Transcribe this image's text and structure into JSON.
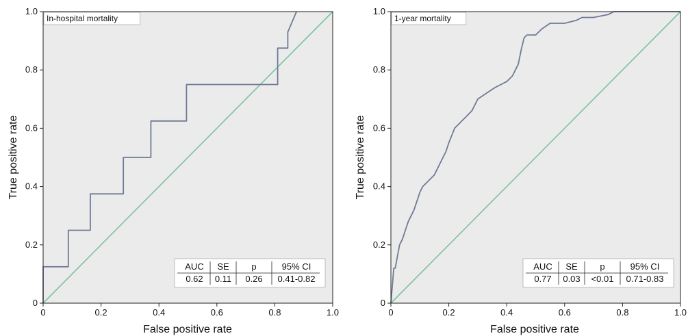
{
  "chart_data": [
    {
      "type": "line",
      "title": "In-hospital mortality",
      "xlabel": "False positive rate",
      "ylabel": "True positive rate",
      "xlim": [
        0,
        1
      ],
      "ylim": [
        0,
        1
      ],
      "xticks": [
        "0",
        "0.2",
        "0.4",
        "0.6",
        "0.8",
        "1.0"
      ],
      "yticks": [
        "0",
        "0.2",
        "0.4",
        "0.6",
        "0.8",
        "1.0"
      ],
      "colors": {
        "roc": "#6f7a95",
        "reference": "#79c49b",
        "background": "#ebebeb"
      },
      "series": [
        {
          "x": [
            0,
            0,
            0.087,
            0.087,
            0.163,
            0.163,
            0.277,
            0.277,
            0.372,
            0.372,
            0.495,
            0.495,
            0.81,
            0.81,
            0.825,
            0.825,
            0.845,
            0.845,
            0.875
          ],
          "y": [
            0,
            0.125,
            0.125,
            0.25,
            0.25,
            0.375,
            0.375,
            0.5,
            0.5,
            0.625,
            0.625,
            0.75,
            0.75,
            0.875,
            0.875,
            0.875,
            0.875,
            0.93,
            1.0
          ]
        },
        {
          "x": [
            0,
            1
          ],
          "y": [
            0,
            1
          ]
        }
      ],
      "stats_table": {
        "headers": [
          "AUC",
          "SE",
          "p",
          "95% CI"
        ],
        "values": [
          "0.62",
          "0.11",
          "0.26",
          "0.41-0.82"
        ]
      }
    },
    {
      "type": "line",
      "title": "1-year mortality",
      "xlabel": "False positive rate",
      "ylabel": "True positive rate",
      "xlim": [
        0,
        1
      ],
      "ylim": [
        0,
        1
      ],
      "xticks": [
        "0",
        "0.2",
        "0.4",
        "0.6",
        "0.8",
        "1.0"
      ],
      "yticks": [
        "0",
        "0.2",
        "0.4",
        "0.6",
        "0.8",
        "1.0"
      ],
      "colors": {
        "roc": "#6f7a95",
        "reference": "#79c49b",
        "background": "#ebebeb"
      },
      "series": [
        {
          "x": [
            0,
            0.005,
            0.01,
            0.015,
            0.03,
            0.04,
            0.05,
            0.06,
            0.08,
            0.1,
            0.11,
            0.13,
            0.15,
            0.17,
            0.19,
            0.2,
            0.22,
            0.24,
            0.26,
            0.28,
            0.3,
            0.33,
            0.36,
            0.38,
            0.4,
            0.42,
            0.44,
            0.45,
            0.46,
            0.47,
            0.5,
            0.52,
            0.55,
            0.6,
            0.64,
            0.66,
            0.7,
            0.75,
            0.77,
            1.0
          ],
          "y": [
            0,
            0.06,
            0.12,
            0.12,
            0.2,
            0.22,
            0.25,
            0.28,
            0.32,
            0.38,
            0.4,
            0.42,
            0.44,
            0.48,
            0.52,
            0.55,
            0.6,
            0.62,
            0.64,
            0.66,
            0.7,
            0.72,
            0.74,
            0.75,
            0.76,
            0.78,
            0.82,
            0.87,
            0.91,
            0.92,
            0.92,
            0.94,
            0.96,
            0.96,
            0.97,
            0.98,
            0.98,
            0.99,
            1.0,
            1.0
          ]
        },
        {
          "x": [
            0,
            1
          ],
          "y": [
            0,
            1
          ]
        }
      ],
      "stats_table": {
        "headers": [
          "AUC",
          "SE",
          "p",
          "95% CI"
        ],
        "values": [
          "0.77",
          "0.03",
          "<0.01",
          "0.71-0.83"
        ]
      }
    }
  ]
}
